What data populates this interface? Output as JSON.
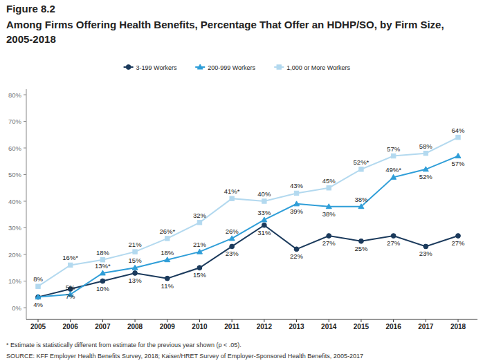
{
  "chart_data": {
    "type": "line",
    "title": "Figure 8.2",
    "subtitle": "Among Firms Offering Health Benefits, Percentage That Offer an HDHP/SO, by Firm Size, 2005-2018",
    "annotations": [
      "* Estimate is statistically different from estimate for the previous year shown (p < .05).",
      "SOURCE: KFF Employer Health Benefits Survey, 2018; Kaiser/HRET Survey of Employer-Sponsored Health Benefits, 2005-2017"
    ],
    "categories": [
      "2005",
      "2006",
      "2007",
      "2008",
      "2009",
      "2010",
      "2011",
      "2012",
      "2013",
      "2014",
      "2015",
      "2016",
      "2017",
      "2018"
    ],
    "series": [
      {
        "name": "3-199 Workers",
        "color": "#1b3a5c",
        "marker": "circle",
        "values": [
          4,
          7,
          10,
          13,
          11,
          15,
          23,
          31,
          22,
          27,
          25,
          27,
          23,
          27
        ],
        "value_labels": [
          "4%",
          "7%",
          "10%",
          "13%",
          "11%",
          "15%",
          "23%",
          "31%",
          "22%",
          "27%",
          "25%",
          "27%",
          "23%",
          "27%"
        ]
      },
      {
        "name": "200-999 Workers",
        "color": "#2f9ed8",
        "marker": "triangle",
        "values": [
          4,
          5,
          13,
          15,
          18,
          21,
          26,
          33,
          39,
          38,
          38,
          49,
          52,
          57
        ],
        "value_labels": [
          null,
          "5%",
          "13%*",
          "15%",
          "18%",
          "21%",
          "26%",
          "33%",
          "39%",
          "38%",
          "38%",
          "49%*",
          "52%",
          "57%"
        ]
      },
      {
        "name": "1,000 or More Workers",
        "color": "#b3d9ef",
        "marker": "square",
        "values": [
          8,
          16,
          18,
          21,
          26,
          32,
          41,
          40,
          43,
          45,
          52,
          57,
          58,
          64
        ],
        "value_labels": [
          "8%",
          "16%*",
          "18%",
          "21%",
          "26%*",
          "32%",
          "41%*",
          "40%",
          "43%",
          "45%",
          "52%*",
          "57%",
          "58%",
          "64%"
        ]
      }
    ],
    "ylim": [
      0,
      80
    ],
    "yticks": [
      {
        "value": 0,
        "label": "0%"
      },
      {
        "value": 10,
        "label": "10%"
      },
      {
        "value": 20,
        "label": "20%"
      },
      {
        "value": 30,
        "label": "30%"
      },
      {
        "value": 40,
        "label": "40%"
      },
      {
        "value": 50,
        "label": "50%"
      },
      {
        "value": 60,
        "label": "60%"
      },
      {
        "value": 70,
        "label": "70%"
      },
      {
        "value": 80,
        "label": "80%"
      }
    ],
    "grid": false,
    "legend": "top",
    "data_labels": true
  }
}
